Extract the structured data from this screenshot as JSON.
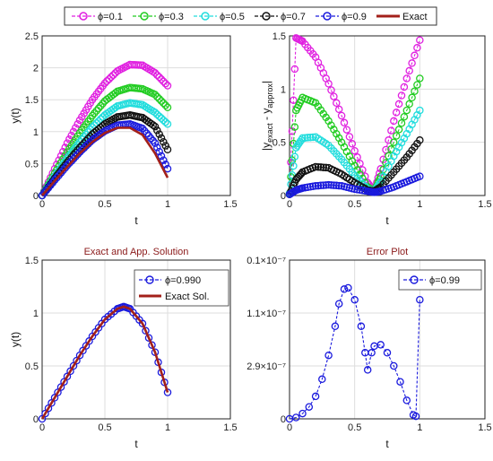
{
  "figure_legend": {
    "entries": [
      {
        "label": "ϕ=0.1",
        "color": "#e020e0"
      },
      {
        "label": "ϕ=0.3",
        "color": "#22cc22"
      },
      {
        "label": "ϕ=0.5",
        "color": "#22dddd"
      },
      {
        "label": "ϕ=0.7",
        "color": "#111111"
      },
      {
        "label": "ϕ=0.9",
        "color": "#1a1add"
      },
      {
        "label": "Exact",
        "color": "#a3201a"
      }
    ]
  },
  "chart_data": [
    {
      "type": "line",
      "title": "",
      "xlabel": "t",
      "ylabel": "y(t)",
      "xlim": [
        0,
        1.5
      ],
      "ylim": [
        0,
        2.5
      ],
      "xticks": [
        "0",
        "0.5",
        "1",
        "1.5"
      ],
      "yticks": [
        "0",
        "0.5",
        "1",
        "1.5",
        "2",
        "2.5"
      ],
      "grid": true,
      "x": [
        0,
        0.1,
        0.2,
        0.3,
        0.4,
        0.5,
        0.6,
        0.7,
        0.8,
        0.9,
        1.0
      ],
      "series": [
        {
          "name": "ϕ=0.1",
          "color": "#e020e0",
          "marker": "circle",
          "values": [
            0,
            0.42,
            0.82,
            1.18,
            1.5,
            1.76,
            1.95,
            2.05,
            2.04,
            1.92,
            1.72
          ]
        },
        {
          "name": "ϕ=0.3",
          "color": "#22cc22",
          "marker": "circle",
          "values": [
            0,
            0.35,
            0.68,
            0.98,
            1.25,
            1.48,
            1.63,
            1.69,
            1.67,
            1.58,
            1.38
          ]
        },
        {
          "name": "ϕ=0.5",
          "color": "#22dddd",
          "marker": "circle",
          "values": [
            0,
            0.3,
            0.58,
            0.84,
            1.07,
            1.26,
            1.4,
            1.45,
            1.42,
            1.3,
            1.12
          ]
        },
        {
          "name": "ϕ=0.7",
          "color": "#111111",
          "marker": "circle",
          "values": [
            0,
            0.27,
            0.52,
            0.75,
            0.96,
            1.12,
            1.23,
            1.26,
            1.22,
            1.08,
            0.72
          ]
        },
        {
          "name": "ϕ=0.9",
          "color": "#1a1add",
          "marker": "circle",
          "values": [
            0,
            0.24,
            0.47,
            0.68,
            0.87,
            1.01,
            1.1,
            1.12,
            1.05,
            0.82,
            0.42
          ]
        },
        {
          "name": "Exact",
          "color": "#a3201a",
          "marker": "none",
          "values": [
            0,
            0.23,
            0.45,
            0.66,
            0.84,
            0.98,
            1.06,
            1.06,
            0.95,
            0.66,
            0.28
          ]
        }
      ]
    },
    {
      "type": "line",
      "title": "",
      "xlabel": "t",
      "ylabel": "|y_exact - y_approx|",
      "ylabel_main": "|y",
      "ylabel_sub1": "exact",
      "ylabel_mid": " - y",
      "ylabel_sub2": "approx",
      "ylabel_end": "|",
      "xlim": [
        0,
        1.5
      ],
      "ylim": [
        0,
        1.5
      ],
      "xticks": [
        "0",
        "0.5",
        "1",
        "1.5"
      ],
      "yticks": [
        "0",
        "0.5",
        "1",
        "1.5"
      ],
      "grid": true,
      "x": [
        0,
        0.05,
        0.1,
        0.2,
        0.3,
        0.4,
        0.5,
        0.6,
        0.65,
        0.7,
        0.8,
        0.9,
        1.0
      ],
      "series": [
        {
          "name": "ϕ=0.1",
          "color": "#e020e0",
          "marker": "circle",
          "values": [
            0.02,
            1.48,
            1.45,
            1.3,
            1.05,
            0.75,
            0.42,
            0.12,
            0.04,
            0.25,
            0.7,
            1.1,
            1.46
          ]
        },
        {
          "name": "ϕ=0.3",
          "color": "#22cc22",
          "marker": "circle",
          "values": [
            0.02,
            0.8,
            0.92,
            0.87,
            0.7,
            0.5,
            0.28,
            0.08,
            0.04,
            0.18,
            0.5,
            0.8,
            1.1
          ]
        },
        {
          "name": "ϕ=0.5",
          "color": "#22dddd",
          "marker": "circle",
          "values": [
            0.02,
            0.45,
            0.54,
            0.55,
            0.47,
            0.34,
            0.19,
            0.06,
            0.04,
            0.13,
            0.37,
            0.58,
            0.8
          ]
        },
        {
          "name": "ϕ=0.7",
          "color": "#111111",
          "marker": "circle",
          "values": [
            0.01,
            0.15,
            0.22,
            0.27,
            0.26,
            0.2,
            0.12,
            0.05,
            0.04,
            0.08,
            0.22,
            0.36,
            0.52
          ]
        },
        {
          "name": "ϕ=0.9",
          "color": "#1a1add",
          "marker": "circle",
          "values": [
            0.01,
            0.05,
            0.07,
            0.09,
            0.1,
            0.09,
            0.06,
            0.04,
            0.03,
            0.04,
            0.08,
            0.13,
            0.18
          ]
        }
      ]
    },
    {
      "type": "line",
      "title": "Exact and App. Solution",
      "xlabel": "t",
      "ylabel": "y(t)",
      "xlim": [
        0,
        1.5
      ],
      "ylim": [
        0,
        1.5
      ],
      "xticks": [
        "0",
        "0.5",
        "1",
        "1.5"
      ],
      "yticks": [
        "0",
        "0.5",
        "1",
        "1.5"
      ],
      "grid": true,
      "x": [
        0,
        0.1,
        0.2,
        0.3,
        0.4,
        0.5,
        0.6,
        0.65,
        0.7,
        0.8,
        0.9,
        1.0
      ],
      "series": [
        {
          "name": "ϕ=0.990",
          "color": "#1a1add",
          "marker": "circle",
          "values": [
            0,
            0.2,
            0.4,
            0.6,
            0.78,
            0.94,
            1.04,
            1.06,
            1.04,
            0.9,
            0.63,
            0.25
          ]
        },
        {
          "name": "Exact Sol.",
          "color": "#a3201a",
          "marker": "none",
          "values": [
            0,
            0.2,
            0.4,
            0.6,
            0.78,
            0.94,
            1.04,
            1.06,
            1.04,
            0.9,
            0.63,
            0.25
          ]
        }
      ]
    },
    {
      "type": "line",
      "title": "Error Plot",
      "xlabel": "t",
      "ylabel": "",
      "xlim": [
        0,
        1.5
      ],
      "xticks": [
        "0",
        "0.5",
        "1",
        "1.5"
      ],
      "yticks": [
        "0",
        "2.9×10⁻⁷",
        "1.1×10⁻⁷",
        "0.1×10⁻⁷"
      ],
      "grid": true,
      "x": [
        0,
        0.05,
        0.1,
        0.15,
        0.2,
        0.25,
        0.3,
        0.35,
        0.38,
        0.42,
        0.45,
        0.5,
        0.55,
        0.58,
        0.6,
        0.63,
        0.65,
        0.7,
        0.75,
        0.8,
        0.85,
        0.9,
        0.95,
        0.97,
        1.0
      ],
      "series": [
        {
          "name": "ϕ=0.99",
          "color": "#1a1add",
          "marker": "circle",
          "values": [
            0,
            0.01,
            0.04,
            0.09,
            0.17,
            0.3,
            0.48,
            0.7,
            0.87,
            0.98,
            0.99,
            0.9,
            0.7,
            0.5,
            0.37,
            0.5,
            0.55,
            0.56,
            0.5,
            0.4,
            0.28,
            0.14,
            0.03,
            0.02,
            0.9
          ]
        }
      ]
    }
  ]
}
